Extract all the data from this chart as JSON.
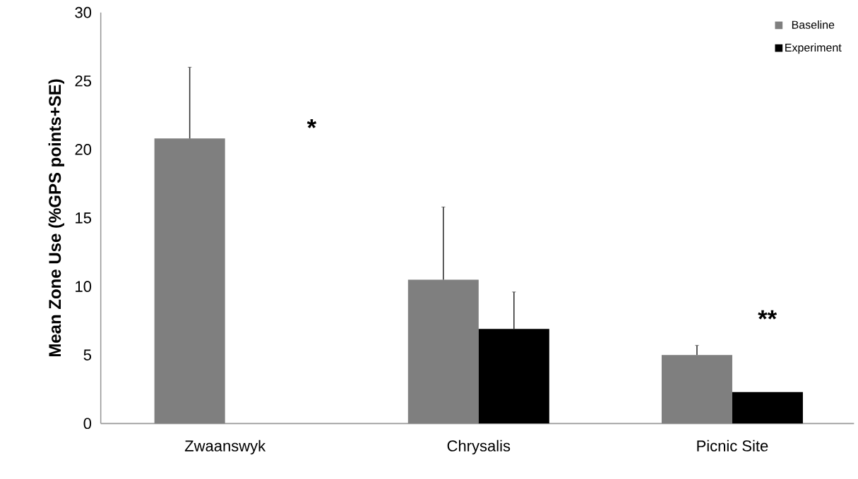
{
  "chart_data": {
    "type": "bar",
    "ylabel": "Mean Zone Use (%GPS points+SE)",
    "categories": [
      "Zwaanswyk",
      "Chrysalis",
      "Picnic Site"
    ],
    "series": [
      {
        "name": "Baseline",
        "color": "#7f7f7f",
        "values": [
          20.8,
          10.5,
          5.0
        ],
        "errors": [
          5.2,
          5.3,
          0.7
        ]
      },
      {
        "name": "Experiment",
        "color": "#000000",
        "values": [
          null,
          6.9,
          2.3
        ],
        "errors": [
          null,
          2.7,
          null
        ]
      }
    ],
    "ylim": [
      0,
      30
    ],
    "yticks": [
      0,
      5,
      10,
      15,
      20,
      25,
      30
    ],
    "annotations": [
      "*",
      "**"
    ],
    "legend": "top right",
    "grid": false
  }
}
